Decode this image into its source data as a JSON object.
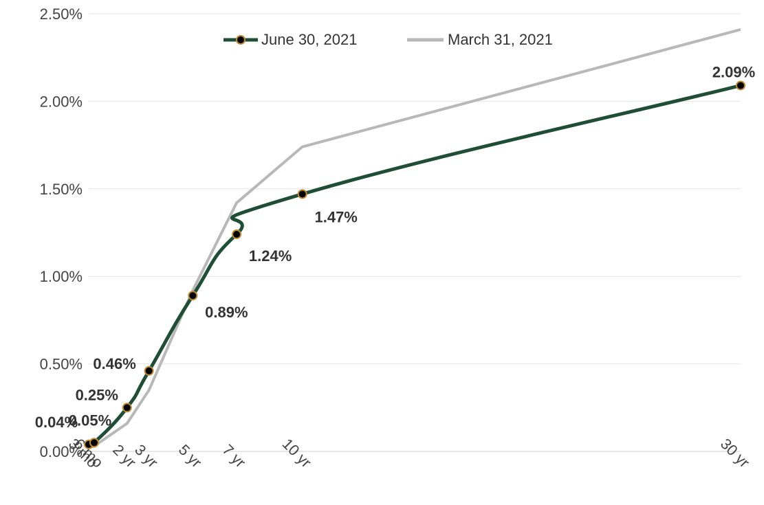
{
  "chart_data": {
    "type": "line",
    "title": "",
    "xlabel": "",
    "ylabel": "",
    "categories": [
      "3 mo",
      "6 mo",
      "2 yr",
      "3 yr",
      "5 yr",
      "7 yr",
      "10 yr",
      "30 yr"
    ],
    "x_years": [
      0.25,
      0.5,
      2,
      3,
      5,
      7,
      10,
      30
    ],
    "ylim": [
      0,
      2.5
    ],
    "yticks": [
      "0.00%",
      "0.50%",
      "1.00%",
      "1.50%",
      "2.00%",
      "2.50%"
    ],
    "ytick_values": [
      0,
      0.5,
      1.0,
      1.5,
      2.0,
      2.5
    ],
    "grid": "horizontal",
    "legend_position": "top",
    "series": [
      {
        "name": "June 30, 2021",
        "color": "#1f4e36",
        "marker": true,
        "marker_color": "#000000",
        "marker_edge": "#c08a30",
        "values": [
          0.04,
          0.05,
          0.25,
          0.46,
          0.89,
          1.24,
          1.47,
          2.09
        ],
        "labels": [
          "0.04%",
          "0.05%",
          "0.25%",
          "0.46%",
          "0.89%",
          "1.24%",
          "1.47%",
          "2.09%"
        ]
      },
      {
        "name": "March 31, 2021",
        "color": "#b8b8b8",
        "marker": false,
        "values": [
          0.02,
          0.03,
          0.16,
          0.35,
          0.92,
          1.42,
          1.74,
          2.41
        ]
      }
    ]
  }
}
